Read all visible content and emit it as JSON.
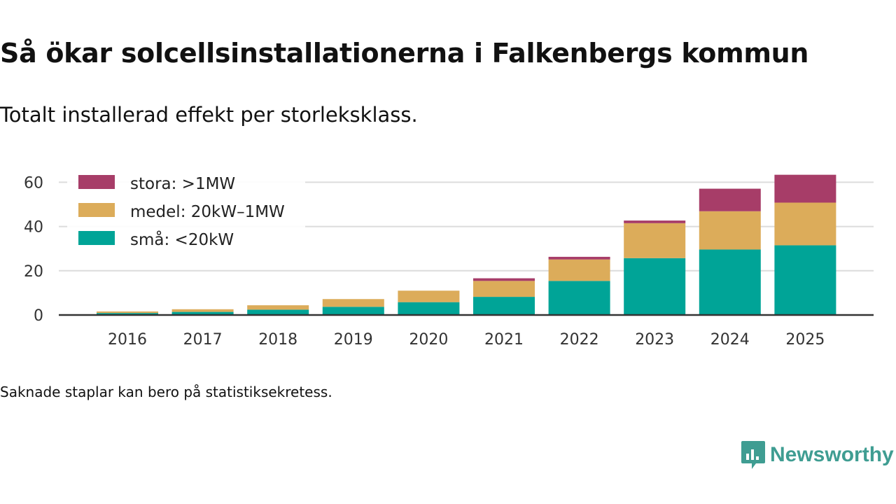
{
  "title": "Så ökar solcellsinstallationerna i Falkenbergs kommun",
  "subtitle": "Totalt installerad effekt per storleksklass.",
  "note": "Saknade staplar kan bero på statistiksekretess.",
  "brand": {
    "name": "Newsworthy",
    "icon": "newsworthy-logo-icon",
    "color": "#3f9d92"
  },
  "chart_data": {
    "type": "bar",
    "stacked": true,
    "title": "Så ökar solcellsinstallationerna i Falkenbergs kommun",
    "subtitle": "Totalt installerad effekt per storleksklass.",
    "xlabel": "",
    "ylabel": "",
    "ylim": [
      0,
      65
    ],
    "yticks": [
      0,
      20,
      40,
      60
    ],
    "grid": true,
    "legend_position": "top-left",
    "categories": [
      "2016",
      "2017",
      "2018",
      "2019",
      "2020",
      "2021",
      "2022",
      "2023",
      "2024",
      "2025"
    ],
    "series": [
      {
        "name": "små: <20kW",
        "color": "#00a497",
        "values": [
          0.9,
          1.4,
          2.4,
          3.7,
          5.8,
          8.2,
          15.4,
          25.7,
          29.6,
          31.5
        ]
      },
      {
        "name": "medel: 20kW–1MW",
        "color": "#dcac5a",
        "values": [
          0.7,
          1.2,
          2.0,
          3.5,
          5.2,
          7.2,
          9.7,
          15.8,
          17.3,
          19.3
        ]
      },
      {
        "name": "stora: >1MW",
        "color": "#a73d68",
        "values": [
          0.0,
          0.0,
          0.0,
          0.0,
          0.0,
          1.2,
          1.2,
          1.2,
          10.2,
          12.6
        ]
      }
    ]
  }
}
